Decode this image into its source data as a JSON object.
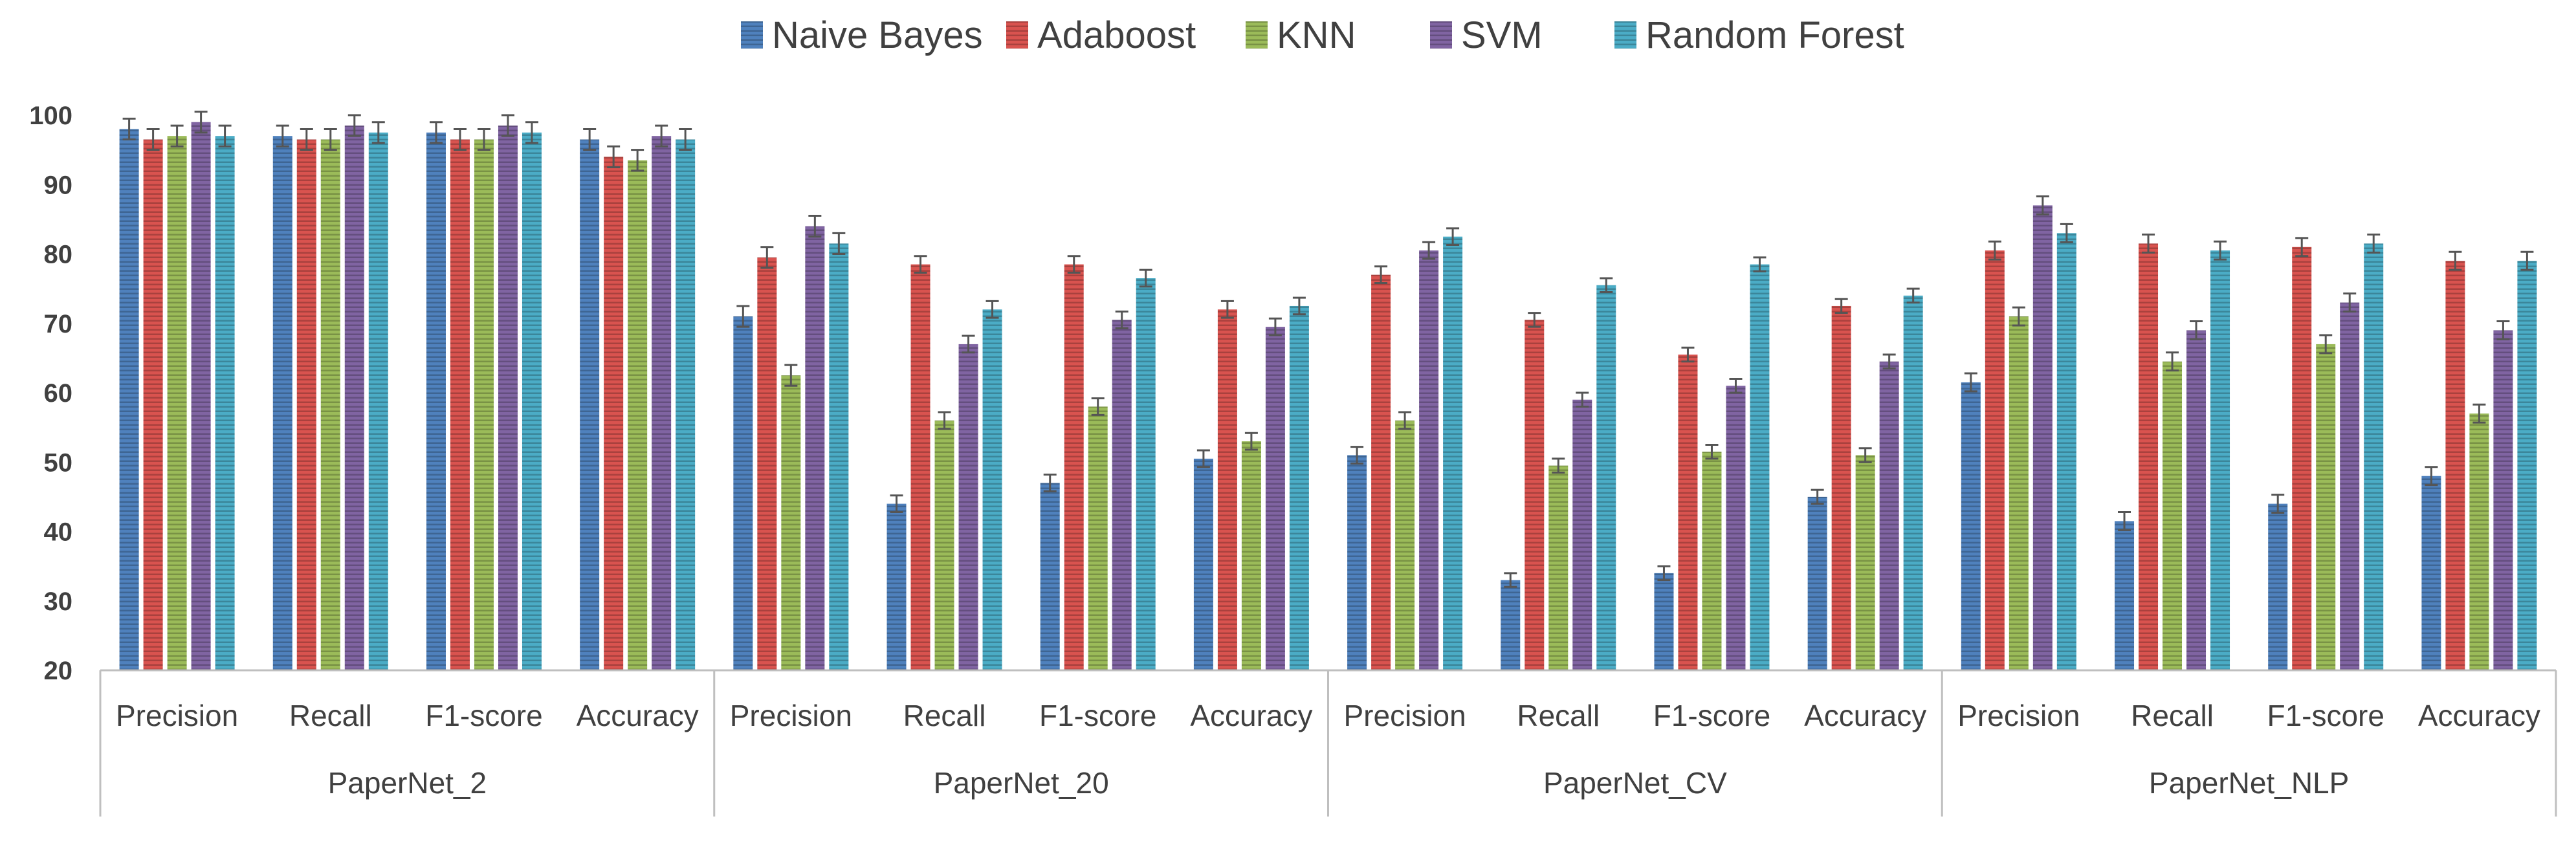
{
  "chart_data": {
    "type": "bar",
    "title": "",
    "xlabel": "",
    "ylabel": "",
    "ylim": [
      20,
      100
    ],
    "yticks": [
      20,
      30,
      40,
      50,
      60,
      70,
      80,
      90,
      100
    ],
    "legend_position": "top",
    "grid": false,
    "groups": [
      {
        "name": "PaperNet_2",
        "categories": [
          "Precision",
          "Recall",
          "F1-score",
          "Accuracy"
        ]
      },
      {
        "name": "PaperNet_20",
        "categories": [
          "Precision",
          "Recall",
          "F1-score",
          "Accuracy"
        ]
      },
      {
        "name": "PaperNet_CV",
        "categories": [
          "Precision",
          "Recall",
          "F1-score",
          "Accuracy"
        ]
      },
      {
        "name": "PaperNet_NLP",
        "categories": [
          "Precision",
          "Recall",
          "F1-score",
          "Accuracy"
        ]
      }
    ],
    "series": [
      {
        "name": "Naive Bayes",
        "color": "#4F81BD",
        "values": [
          98,
          97,
          97.5,
          96.5,
          71,
          44,
          47,
          50.5,
          51,
          33,
          34,
          45,
          61.5,
          41.5,
          44,
          48
        ]
      },
      {
        "name": "Adaboost",
        "color": "#D9534F",
        "values": [
          96.5,
          96.5,
          96.5,
          94,
          79.5,
          78.5,
          78.5,
          72,
          77,
          70.5,
          65.5,
          72.5,
          80.5,
          81.5,
          81,
          79
        ]
      },
      {
        "name": "KNN",
        "color": "#9BBB59",
        "values": [
          97,
          96.5,
          96.5,
          93.5,
          62.5,
          56,
          58,
          53,
          56,
          49.5,
          51.5,
          51,
          71,
          64.5,
          67,
          57
        ]
      },
      {
        "name": "SVM",
        "color": "#8064A2",
        "values": [
          99,
          98.5,
          98.5,
          97,
          84,
          67,
          70.5,
          69.5,
          80.5,
          59,
          61,
          64.5,
          87,
          69,
          73,
          69
        ]
      },
      {
        "name": "Random Forest",
        "color": "#4BACC6",
        "values": [
          97,
          97.5,
          97.5,
          96.5,
          81.5,
          72,
          76.5,
          72.5,
          82.5,
          75.5,
          78.5,
          74,
          83,
          80.5,
          81.5,
          79
        ]
      }
    ],
    "error": [
      1.5,
      1.5,
      1.5,
      1.5,
      1.5,
      1.2,
      1.2,
      1.2,
      1.2,
      1.0,
      1.0,
      1.0,
      1.3,
      1.3,
      1.3,
      1.3
    ]
  }
}
